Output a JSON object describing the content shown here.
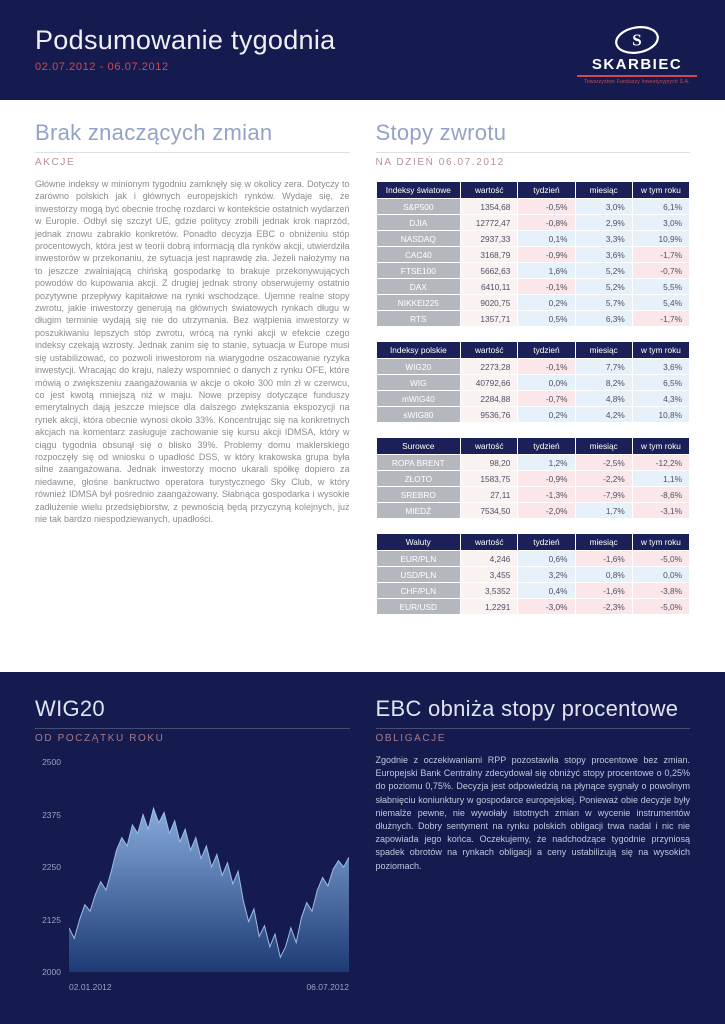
{
  "colors": {
    "navy": "#151b4e",
    "table-header": "#1b2158",
    "red": "#cf4b52",
    "title-blue": "#93a2c7",
    "title-light": "#dfe4f1",
    "rose": "#b98f98",
    "rose-dark": "#a87c87",
    "body-gray": "#8b8b92",
    "body-light": "#c2c8dc",
    "label-gray": "#b4b7bd",
    "cell-positive": "#e7f1fa",
    "cell-negative": "#fbe7ea",
    "cell-value": "#faf1f1",
    "axis-label": "#99a2c3"
  },
  "header": {
    "title": "Podsumowanie tygodnia",
    "date_range": "02.07.2012 - 06.07.2012",
    "logo": {
      "monogram": "S",
      "name": "SKARBIEC",
      "tagline": "Towarzystwo Funduszy Inwestycyjnych S.A."
    }
  },
  "article": {
    "title": "Brak znaczących zmian",
    "subtitle": "AKCJE",
    "body": "Główne indeksy w minionym tygodniu zamknęły się w okolicy zera. Dotyczy to zarówno polskich jak i głównych europejskich rynków. Wydaje się, że inwestorzy mogą być obecnie trochę rozdarci w kontekście ostatnich wydarzeń w Europie. Odbył się szczyt UE, gdzie politycy zrobili jednak krok naprzód, jednak znowu zabrakło konkretów. Ponadto decyzja EBC o obniżeniu stóp procentowych, która jest w teorii dobrą informacją dla rynków akcji, utwierdziła inwestorów w przekonaniu, że sytuacja jest naprawdę zła. Jeżeli nałożymy na to jeszcze zwalniającą chińską gospodarkę to brakuje przekonywujących powodów do kupowania akcji. Z drugiej jednak strony obserwujemy ostatnio pozytywne przepływy kapitałowe na rynki wschodzące. Ujemne realne stopy zwrotu, jakie inwestorzy generują na głównych światowych rynkach długu w długim terminie wydają się nie do utrzymania. Bez wątpienia inwestorzy w poszukiwaniu lepszych stóp zwrotu, wrócą na rynki akcji w efekcie czego indeksy czekają wzrosty. Jednak zanim się to stanie, sytuacja w Europe musi się ustabilizować, co pozwoli inwestorom na wiarygodne oszacowanie ryzyka inwestycji. Wracając do kraju, należy wspomnieć o danych z rynku OFE, które mówią o zwiększeniu zaangażowania w akcje o około 300 mln zł w czerwcu, co jest kwotą mniejszą niż w maju. Nowe przepisy dotyczące funduszy emerytalnych dają jeszcze miejsce dla dalszego zwiększania ekspozycji na rynek akcji, która obecnie wynosi około 33%. Koncentrując się na konkretnych akcjach na komentarz zasługuje zachowanie się kursu akcji IDMSA, który w ciągu tygodnia obsunął się o blisko 39%. Problemy domu maklerskiego rozpoczęły się od wniosku o upadłość DSS, w który krakowska grupa była silne zaangażowana. Jednak inwestorzy mocno ukarali spółkę dopiero za niedawne, głośne bankructwo operatora turystycznego Sky Club, w który również IDMSA był pośrednio zaangażowany. Słabnąca gospodarka i wysokie zadłużenie wielu przedsiębiorstw, z pewnością będą przyczyną kolejnych, już nie tak bardzo niespodziewanych, upadłości."
  },
  "returns": {
    "title": "Stopy zwrotu",
    "subtitle": "NA DZIEŃ 06.07.2012",
    "tables": [
      {
        "name": "Indeksy światowe",
        "columns": [
          "wartość",
          "tydzień",
          "miesiąc",
          "w tym roku"
        ],
        "rows": [
          {
            "label": "S&P500",
            "values": [
              "1354,68",
              "-0,5%",
              "3,0%",
              "6,1%"
            ]
          },
          {
            "label": "DJIA",
            "values": [
              "12772,47",
              "-0,8%",
              "2,9%",
              "3,0%"
            ]
          },
          {
            "label": "NASDAQ",
            "values": [
              "2937,33",
              "0,1%",
              "3,3%",
              "10,9%"
            ]
          },
          {
            "label": "CAC40",
            "values": [
              "3168,79",
              "-0,9%",
              "3,6%",
              "-1,7%"
            ]
          },
          {
            "label": "FTSE100",
            "values": [
              "5662,63",
              "1,6%",
              "5,2%",
              "-0,7%"
            ]
          },
          {
            "label": "DAX",
            "values": [
              "6410,11",
              "-0,1%",
              "5,2%",
              "5,5%"
            ]
          },
          {
            "label": "NIKKEI225",
            "values": [
              "9020,75",
              "0,2%",
              "5,7%",
              "5,4%"
            ]
          },
          {
            "label": "RTS",
            "values": [
              "1357,71",
              "0,5%",
              "6,3%",
              "-1,7%"
            ]
          }
        ]
      },
      {
        "name": "Indeksy polskie",
        "columns": [
          "wartość",
          "tydzień",
          "miesiąc",
          "w tym roku"
        ],
        "rows": [
          {
            "label": "WIG20",
            "values": [
              "2273,28",
              "-0,1%",
              "7,7%",
              "3,6%"
            ]
          },
          {
            "label": "WIG",
            "values": [
              "40792,66",
              "0,0%",
              "8,2%",
              "6,5%"
            ]
          },
          {
            "label": "mWIG40",
            "values": [
              "2284,88",
              "-0,7%",
              "4,8%",
              "4,3%"
            ]
          },
          {
            "label": "sWIG80",
            "values": [
              "9536,76",
              "0,2%",
              "4,2%",
              "10,8%"
            ]
          }
        ]
      },
      {
        "name": "Surowce",
        "columns": [
          "wartość",
          "tydzień",
          "miesiąc",
          "w tym roku"
        ],
        "rows": [
          {
            "label": "ROPA BRENT",
            "values": [
              "98,20",
              "1,2%",
              "-2,5%",
              "-12,2%"
            ]
          },
          {
            "label": "ZŁOTO",
            "values": [
              "1583,75",
              "-0,9%",
              "-2,2%",
              "1,1%"
            ]
          },
          {
            "label": "SREBRO",
            "values": [
              "27,11",
              "-1,3%",
              "-7,9%",
              "-8,6%"
            ]
          },
          {
            "label": "MIEDŹ",
            "values": [
              "7534,50",
              "-2,0%",
              "1,7%",
              "-3,1%"
            ]
          }
        ]
      },
      {
        "name": "Waluty",
        "columns": [
          "wartość",
          "tydzień",
          "miesiąc",
          "w tym roku"
        ],
        "rows": [
          {
            "label": "EUR/PLN",
            "values": [
              "4,246",
              "0,6%",
              "-1,6%",
              "-5,0%"
            ]
          },
          {
            "label": "USD/PLN",
            "values": [
              "3,455",
              "3,2%",
              "0,8%",
              "0,0%"
            ]
          },
          {
            "label": "CHF/PLN",
            "values": [
              "3,5352",
              "0,4%",
              "-1,6%",
              "-3,8%"
            ]
          },
          {
            "label": "EUR/USD",
            "values": [
              "1,2291",
              "-3,0%",
              "-2,3%",
              "-5,0%"
            ]
          }
        ]
      }
    ]
  },
  "chart_section": {
    "title": "WIG20",
    "subtitle": "OD POCZĄTKU ROKU"
  },
  "chart_data": {
    "type": "area",
    "title": "WIG20",
    "subtitle": "OD POCZĄTKU ROKU",
    "x_start_label": "02.01.2012",
    "x_end_label": "06.07.2012",
    "ylim": [
      2000,
      2500
    ],
    "yticks": [
      2500,
      2375,
      2250,
      2125,
      2000
    ],
    "grid": false,
    "legend": false,
    "values": [
      2105,
      2080,
      2125,
      2160,
      2145,
      2185,
      2215,
      2195,
      2240,
      2290,
      2320,
      2300,
      2350,
      2330,
      2375,
      2340,
      2390,
      2355,
      2380,
      2330,
      2360,
      2310,
      2340,
      2290,
      2320,
      2270,
      2300,
      2250,
      2280,
      2230,
      2260,
      2210,
      2240,
      2170,
      2120,
      2150,
      2085,
      2110,
      2060,
      2090,
      2035,
      2060,
      2105,
      2070,
      2130,
      2165,
      2145,
      2195,
      2225,
      2205,
      2245,
      2265,
      2250,
      2273
    ]
  },
  "bonds": {
    "title": "EBC obniża stopy procentowe",
    "subtitle": "OBLIGACJE",
    "body": "Zgodnie z oczekiwaniami RPP pozostawiła stopy procentowe bez zmian. Europejski Bank Centralny zdecydował się obniżyć stopy procentowe o 0,25% do poziomu 0,75%. Decyzja jest odpowiedzią na płynące sygnały o powolnym słabnięciu koniunktury w gospodarce europejskiej. Ponieważ obie decyzje były niemalże pewne, nie wywołały istotnych zmian w wycenie instrumentów dłużnych. Dobry sentyment na rynku polskich obligacji trwa nadal i nic nie zapowiada jego końca. Oczekujemy, że nadchodzące tygodnie przyniosą spadek obrotów na rynkach obligacji a ceny ustabilizują się na wysokich poziomach."
  }
}
